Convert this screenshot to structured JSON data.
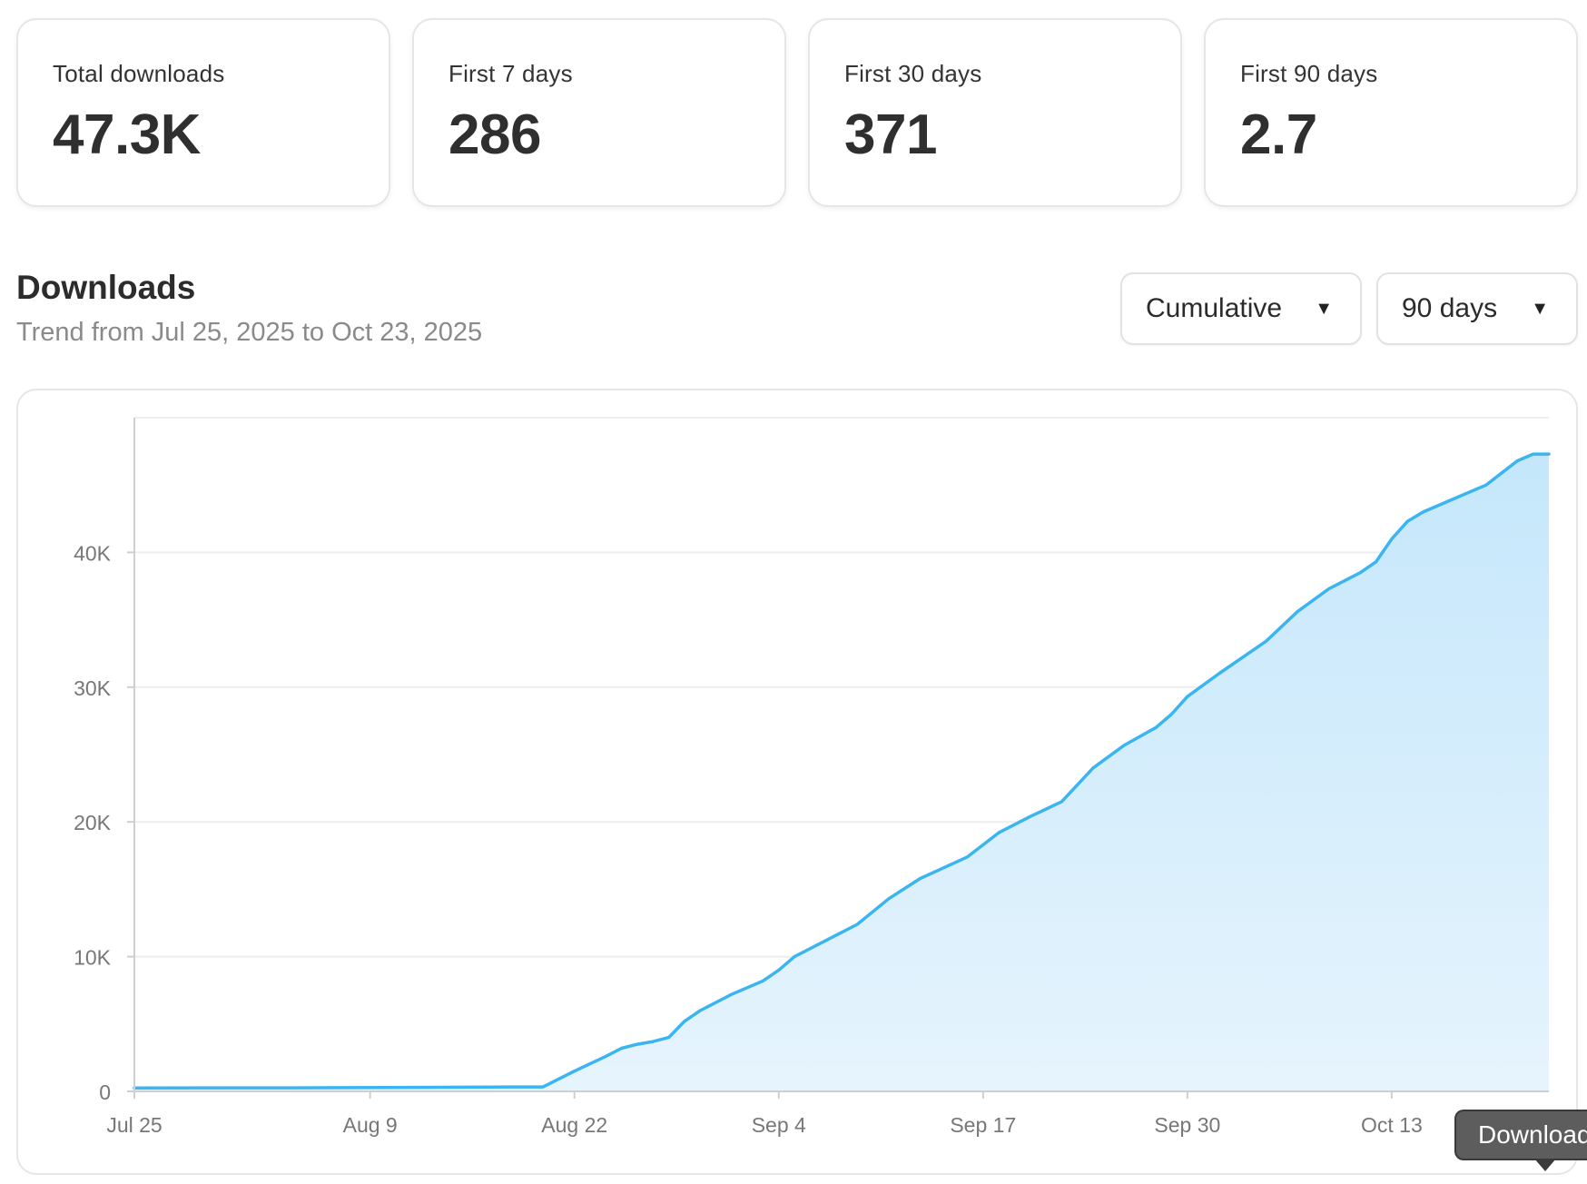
{
  "stats": [
    {
      "label": "Total downloads",
      "value": "47.3K"
    },
    {
      "label": "First 7 days",
      "value": "286"
    },
    {
      "label": "First 30 days",
      "value": "371"
    },
    {
      "label": "First 90 days",
      "value": "2.7"
    }
  ],
  "section": {
    "title": "Downloads",
    "subtitle": "Trend from Jul 25, 2025 to Oct 23, 2025"
  },
  "controls": {
    "mode_value": "Cumulative",
    "range_value": "90 days"
  },
  "tooltip": {
    "text": "Downloads"
  },
  "colors": {
    "line": "#3bb4f2",
    "area_top": "#c5e7fb",
    "area_bottom": "#e6f4fd",
    "grid": "#eeeeee",
    "axis": "#cfcfcf",
    "tick_text": "#777777"
  },
  "icons": {
    "dropdown": "caret-down-icon"
  },
  "chart_data": {
    "type": "area",
    "x_start": "Jul 25",
    "x_end": "Oct 23",
    "x_ticks": [
      "Jul 25",
      "Aug 9",
      "Aug 22",
      "Sep 4",
      "Sep 17",
      "Sep 30",
      "Oct 13"
    ],
    "y_ticks": [
      {
        "value": 0,
        "label": "0"
      },
      {
        "value": 10000,
        "label": "10K"
      },
      {
        "value": 20000,
        "label": "20K"
      },
      {
        "value": 30000,
        "label": "30K"
      },
      {
        "value": 40000,
        "label": "40K"
      }
    ],
    "ylim": [
      0,
      50000
    ],
    "grid": true,
    "series": [
      {
        "values": [
          [
            0,
            250
          ],
          [
            10,
            260
          ],
          [
            16,
            290
          ],
          [
            21,
            310
          ],
          [
            24,
            330
          ],
          [
            26,
            330
          ],
          [
            28,
            1500
          ],
          [
            30,
            2600
          ],
          [
            31,
            3200
          ],
          [
            32,
            3500
          ],
          [
            33,
            3700
          ],
          [
            34,
            4000
          ],
          [
            35,
            5200
          ],
          [
            36,
            6000
          ],
          [
            38,
            7200
          ],
          [
            40,
            8200
          ],
          [
            41,
            9000
          ],
          [
            42,
            10000
          ],
          [
            44,
            11200
          ],
          [
            46,
            12400
          ],
          [
            48,
            14300
          ],
          [
            50,
            15800
          ],
          [
            53,
            17400
          ],
          [
            55,
            19200
          ],
          [
            57,
            20400
          ],
          [
            59,
            21500
          ],
          [
            61,
            24000
          ],
          [
            63,
            25700
          ],
          [
            65,
            27000
          ],
          [
            66,
            28000
          ],
          [
            67,
            29300
          ],
          [
            69,
            31000
          ],
          [
            71,
            32600
          ],
          [
            72,
            33400
          ],
          [
            74,
            35600
          ],
          [
            76,
            37300
          ],
          [
            78,
            38500
          ],
          [
            79,
            39300
          ],
          [
            80,
            41000
          ],
          [
            81,
            42300
          ],
          [
            82,
            43000
          ],
          [
            84,
            44000
          ],
          [
            86,
            45000
          ],
          [
            88,
            46800
          ],
          [
            89,
            47300
          ],
          [
            90,
            47300
          ]
        ]
      }
    ]
  }
}
